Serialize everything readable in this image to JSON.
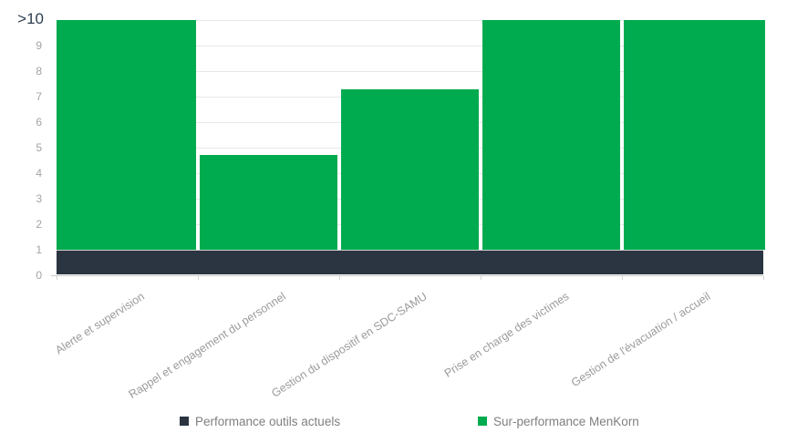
{
  "chart_data": {
    "type": "bar",
    "stacked": true,
    "title": "",
    "categories": [
      "Alerte et supervision",
      "Rappel et engagement du personnel",
      "Gestion du dispositif en SDC-SAMU",
      "Prise en charge des victimes",
      "Gestion de l'évacuation / accueil"
    ],
    "series": [
      {
        "name": "Performance outils actuels",
        "color": "#2b3441",
        "values": [
          1,
          1,
          1,
          1,
          1
        ]
      },
      {
        "name": "Sur-performance MenKorn",
        "color": "#00ab4f",
        "values": [
          ">10",
          4.7,
          7.3,
          ">10",
          ">10"
        ],
        "plot_tops": [
          10,
          4.7,
          7.3,
          10,
          10
        ]
      }
    ],
    "y_axis": {
      "ticks": [
        ">10",
        "9",
        "8",
        "7",
        "6",
        "5",
        "4",
        "3",
        "2",
        "1",
        "0"
      ],
      "ylim": [
        0,
        10
      ],
      "max_label": ">10",
      "grid": true
    },
    "xlabel": "",
    "ylabel": "",
    "legend_position": "bottom"
  },
  "legend": {
    "items": [
      {
        "label": "Performance outils actuels",
        "color": "#2b3441"
      },
      {
        "label": "Sur-performance MenKorn",
        "color": "#00ab4f"
      }
    ]
  },
  "colors": {
    "gridline": "#e8e8e8",
    "axis_line": "#c9c9c9",
    "y_tick_text": "#a3a3a3",
    "y_max_text": "#2d3e50",
    "x_tick_text": "#9b9b9b",
    "legend_text": "#7f7f7f",
    "background": "#ffffff"
  }
}
